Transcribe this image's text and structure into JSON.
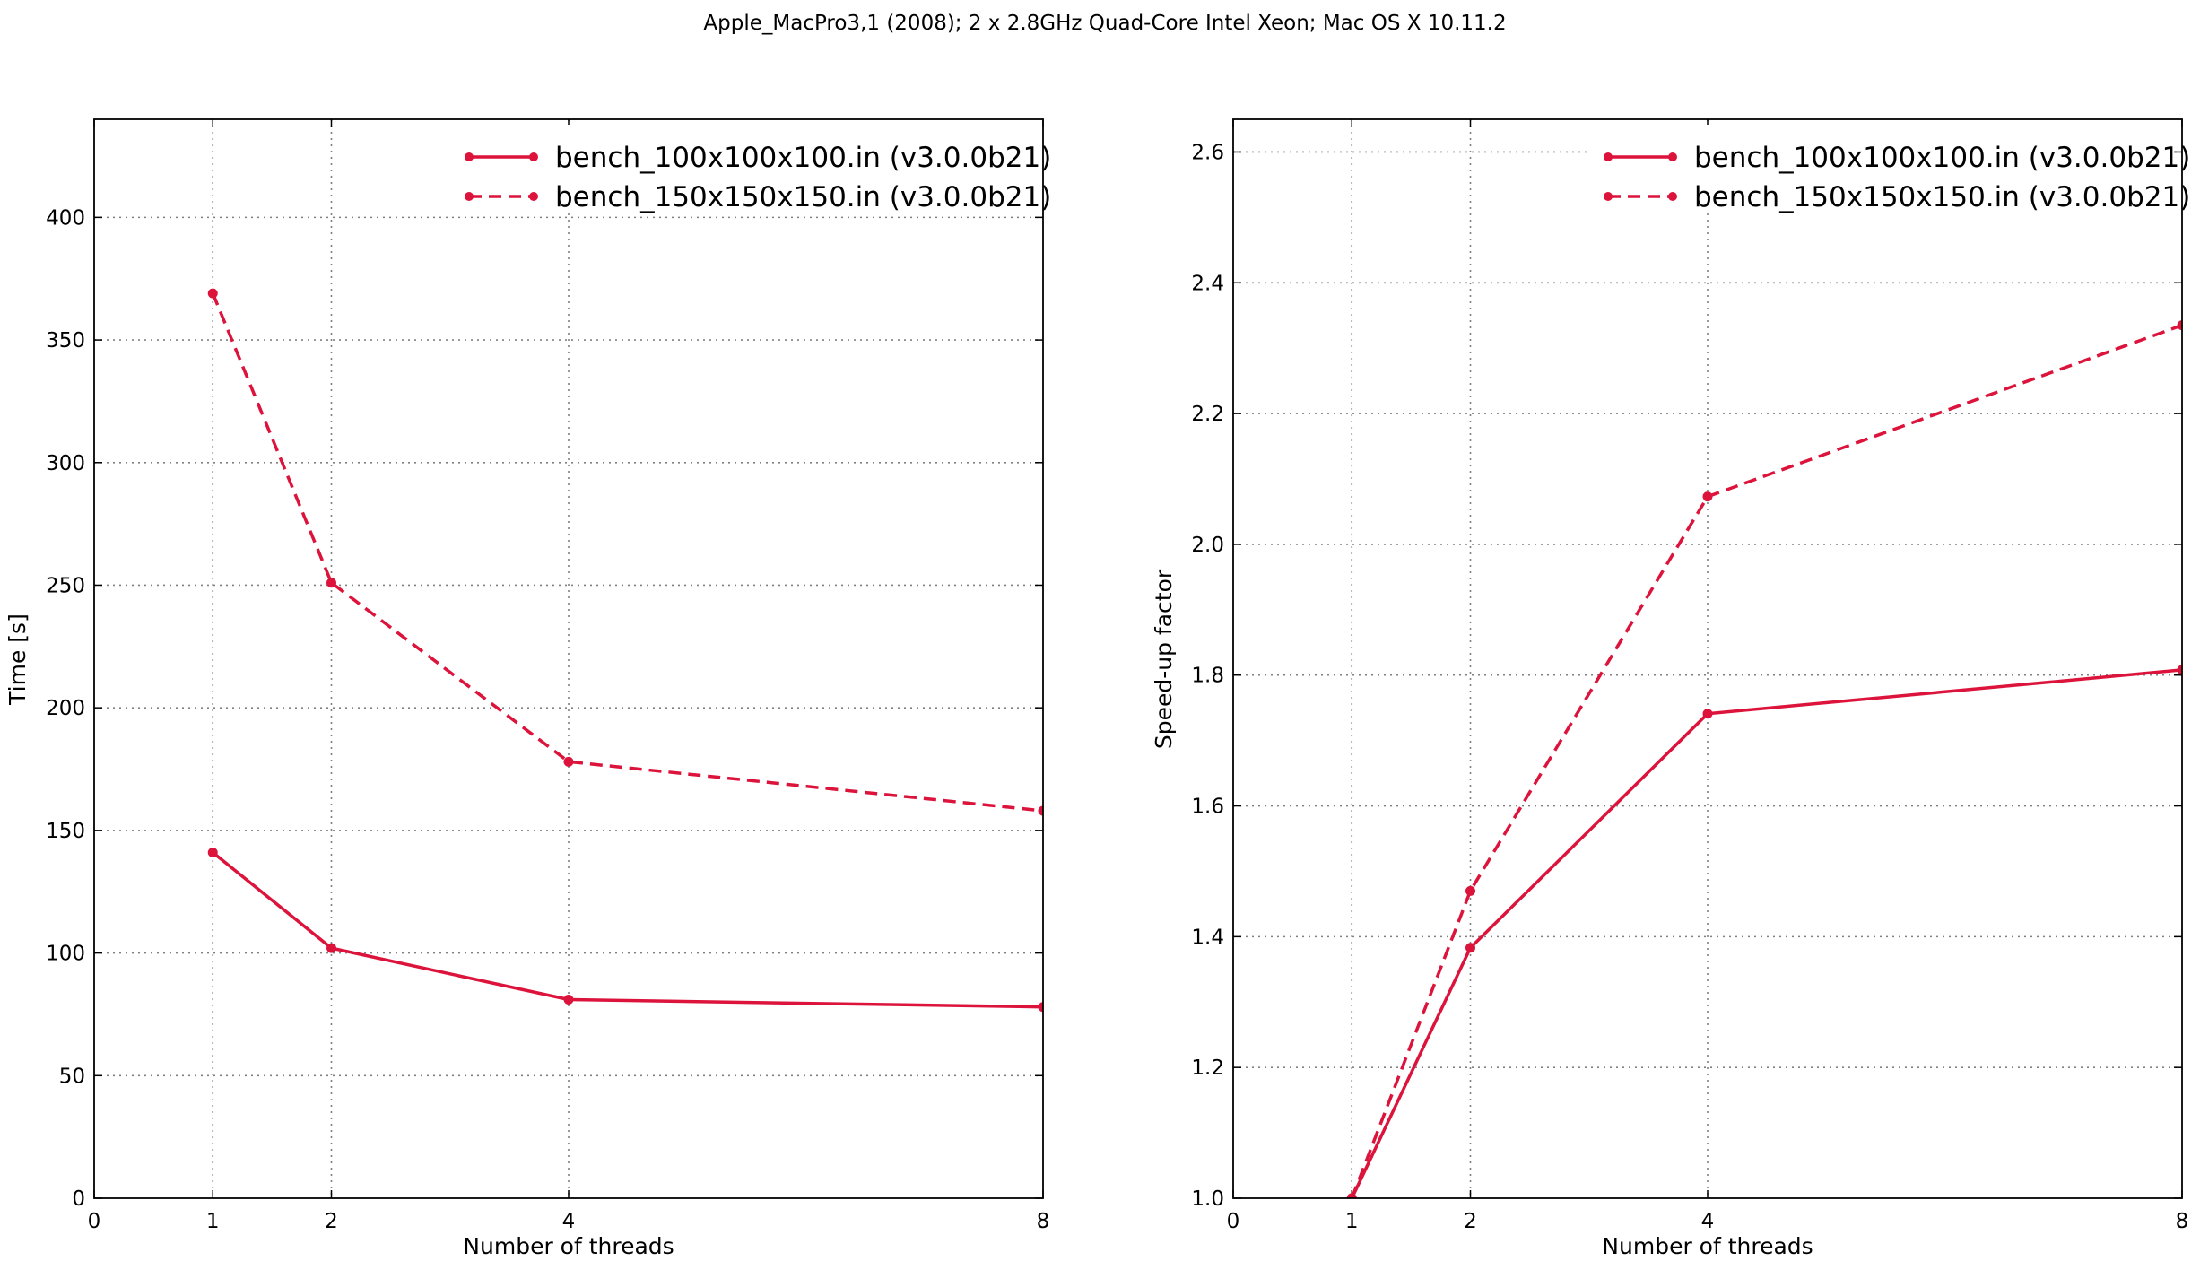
{
  "figure": {
    "suptitle": "Apple_MacPro3,1 (2008); 2 x 2.8GHz Quad-Core Intel Xeon; Mac OS X 10.11.2"
  },
  "colors": {
    "series": "#dc143c",
    "grid": "#808080",
    "axes": "#000000",
    "background": "#ffffff"
  },
  "chart_data": [
    {
      "type": "line",
      "title": "",
      "xlabel": "Number of threads",
      "ylabel": "Time [s]",
      "xlim": [
        0,
        8
      ],
      "ylim": [
        0,
        440
      ],
      "xticks": [
        0,
        1,
        2,
        4,
        8
      ],
      "yticks": [
        0,
        50,
        100,
        150,
        200,
        250,
        300,
        350,
        400
      ],
      "grid": true,
      "legend": "upper right",
      "x": [
        1,
        2,
        4,
        8
      ],
      "series": [
        {
          "name": "bench_100x100x100.in (v3.0.0b21)",
          "style": "solid",
          "marker": "circle",
          "values": [
            141,
            102,
            81,
            78
          ]
        },
        {
          "name": "bench_150x150x150.in (v3.0.0b21)",
          "style": "dashed",
          "marker": "circle",
          "values": [
            369,
            251,
            178,
            158
          ]
        }
      ]
    },
    {
      "type": "line",
      "title": "",
      "xlabel": "Number of threads",
      "ylabel": "Speed-up factor",
      "xlim": [
        0,
        8
      ],
      "ylim": [
        1.0,
        2.65
      ],
      "xticks": [
        0,
        1,
        2,
        4,
        8
      ],
      "yticks": [
        1.0,
        1.2,
        1.4,
        1.6,
        1.8,
        2.0,
        2.2,
        2.4,
        2.6
      ],
      "grid": true,
      "legend": "upper right",
      "x": [
        1,
        2,
        4,
        8
      ],
      "series": [
        {
          "name": "bench_100x100x100.in (v3.0.0b21)",
          "style": "solid",
          "marker": "circle",
          "values": [
            1.0,
            1.383,
            1.741,
            1.808
          ]
        },
        {
          "name": "bench_150x150x150.in (v3.0.0b21)",
          "style": "dashed",
          "marker": "circle",
          "values": [
            1.0,
            1.47,
            2.073,
            2.335
          ]
        }
      ]
    }
  ]
}
